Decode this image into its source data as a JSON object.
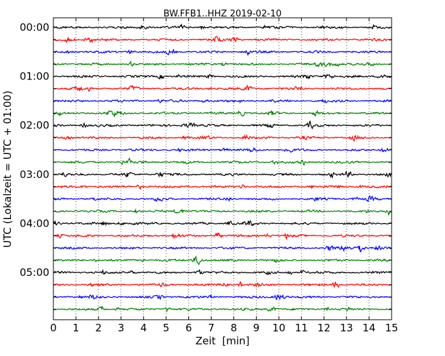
{
  "chart_data": {
    "type": "line",
    "title": "BW.FFB1..HHZ 2019-02-10",
    "xlabel": "Zeit  [min]",
    "ylabel": "UTC (Lokalzeit = UTC + 01:00)",
    "xlim": [
      0,
      15
    ],
    "x_ticks": [
      "0",
      "1",
      "2",
      "3",
      "4",
      "5",
      "6",
      "7",
      "8",
      "9",
      "10",
      "11",
      "12",
      "13",
      "14",
      "15"
    ],
    "y_ticks": [
      "00:00",
      "01:00",
      "02:00",
      "03:00",
      "04:00",
      "05:00"
    ],
    "grid": "vertical dotted",
    "trace_colors": [
      "#000000",
      "#ff0000",
      "#0000ff",
      "#008000"
    ],
    "rows_per_hour": 4,
    "row_minutes": 15,
    "traces": [
      {
        "start": "00:00",
        "color": "#000000"
      },
      {
        "start": "00:15",
        "color": "#ff0000"
      },
      {
        "start": "00:30",
        "color": "#0000ff"
      },
      {
        "start": "00:45",
        "color": "#008000"
      },
      {
        "start": "01:00",
        "color": "#000000"
      },
      {
        "start": "01:15",
        "color": "#ff0000"
      },
      {
        "start": "01:30",
        "color": "#0000ff"
      },
      {
        "start": "01:45",
        "color": "#008000"
      },
      {
        "start": "02:00",
        "color": "#000000"
      },
      {
        "start": "02:15",
        "color": "#ff0000"
      },
      {
        "start": "02:30",
        "color": "#0000ff"
      },
      {
        "start": "02:45",
        "color": "#008000"
      },
      {
        "start": "03:00",
        "color": "#000000"
      },
      {
        "start": "03:15",
        "color": "#ff0000"
      },
      {
        "start": "03:30",
        "color": "#0000ff"
      },
      {
        "start": "03:45",
        "color": "#008000"
      },
      {
        "start": "04:00",
        "color": "#000000"
      },
      {
        "start": "04:15",
        "color": "#ff0000"
      },
      {
        "start": "04:30",
        "color": "#0000ff"
      },
      {
        "start": "04:45",
        "color": "#008000"
      },
      {
        "start": "05:00",
        "color": "#000000"
      },
      {
        "start": "05:15",
        "color": "#ff0000"
      },
      {
        "start": "05:30",
        "color": "#0000ff"
      },
      {
        "start": "05:45",
        "color": "#008000"
      }
    ]
  }
}
